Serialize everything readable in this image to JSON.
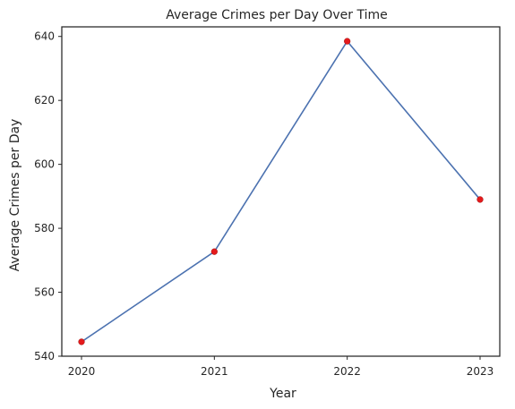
{
  "chart_data": {
    "type": "line",
    "title": "Average Crimes per Day Over Time",
    "xlabel": "Year",
    "ylabel": "Average Crimes per Day",
    "x": [
      2020,
      2021,
      2022,
      2023
    ],
    "x_tick_labels": [
      "2020",
      "2021",
      "2022",
      "2023"
    ],
    "series": [
      {
        "values": [
          544.5,
          572.7,
          638.5,
          589.0
        ]
      }
    ],
    "ylim": [
      540,
      643
    ],
    "y_ticks": [
      540,
      560,
      580,
      600,
      620,
      640
    ],
    "y_tick_labels": [
      "540",
      "560",
      "580",
      "600",
      "620",
      "640"
    ],
    "grid": false,
    "colors": {
      "line": "#4c72b0",
      "marker": "#e41a1c",
      "frame": "#262626"
    }
  }
}
